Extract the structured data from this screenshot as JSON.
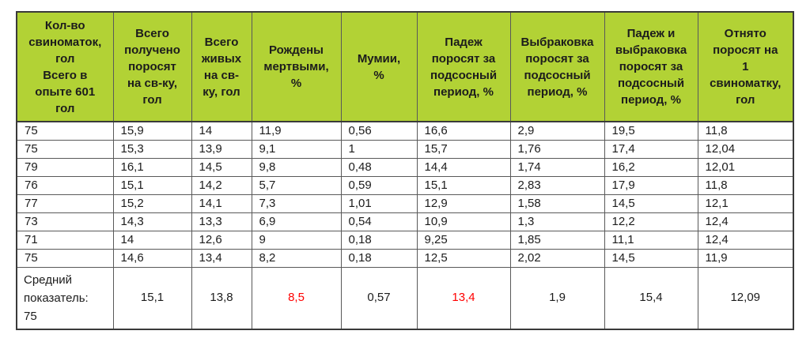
{
  "table": {
    "columns": [
      "Кол-во\nсвиноматок,\nгол\nВсего в\nопыте 601\nгол",
      "Всего\nполучено\nпоросят\nна св-ку,\nгол",
      "Всего\nживых\nна св-\nку, гол",
      "Рождены\nмертвыми,\n%",
      "Мумии,\n%",
      "Падеж\nпоросят за\nподсосный\nпериод, %",
      "Выбраковка\nпоросят за\nподсосный\nпериод, %",
      "Падеж и\nвыбраковка\nпоросят за\nподсосный\nпериод, %",
      "Отнято\nпоросят на\n1\nсвиноматку,\nгол"
    ],
    "rows": [
      [
        "75",
        "15,9",
        "14",
        "11,9",
        "0,56",
        "16,6",
        "2,9",
        "19,5",
        "11,8"
      ],
      [
        "75",
        "15,3",
        "13,9",
        "9,1",
        "1",
        "15,7",
        "1,76",
        "17,4",
        "12,04"
      ],
      [
        "79",
        "16,1",
        "14,5",
        "9,8",
        "0,48",
        "14,4",
        "1,74",
        "16,2",
        "12,01"
      ],
      [
        "76",
        "15,1",
        "14,2",
        "5,7",
        "0,59",
        "15,1",
        "2,83",
        "17,9",
        "11,8"
      ],
      [
        "77",
        "15,2",
        "14,1",
        "7,3",
        "1,01",
        "12,9",
        "1,58",
        "14,5",
        "12,1"
      ],
      [
        "73",
        "14,3",
        "13,3",
        "6,9",
        "0,54",
        "10,9",
        "1,3",
        "12,2",
        "12,4"
      ],
      [
        "71",
        "14",
        "12,6",
        "9",
        "0,18",
        "9,25",
        "1,85",
        "11,1",
        "12,4"
      ],
      [
        "75",
        "14,6",
        "13,4",
        "8,2",
        "0,18",
        "12,5",
        "2,02",
        "14,5",
        "11,9"
      ]
    ],
    "average_row": {
      "label": "Средний\nпоказатель:\n75",
      "values": [
        "15,1",
        "13,8",
        "8,5",
        "0,57",
        "13,4",
        "1,9",
        "15,4",
        "12,09"
      ],
      "red_value_indices": [
        2,
        4
      ]
    },
    "colors": {
      "header_bg": "#b2d235",
      "border": "#595959",
      "border_dark": "#3a3a3a",
      "highlight_red": "#ff0000",
      "text": "#1c1c1c",
      "page_bg": "#ffffff"
    }
  }
}
